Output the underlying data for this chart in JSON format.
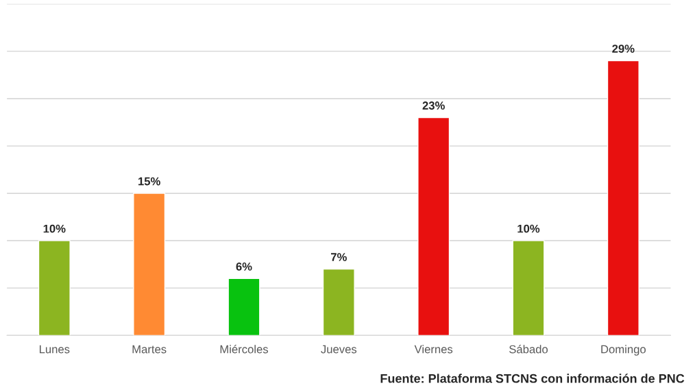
{
  "chart_data": {
    "type": "bar",
    "categories": [
      "Lunes",
      "Martes",
      "Miércoles",
      "Jueves",
      "Viernes",
      "Sábado",
      "Domingo"
    ],
    "values": [
      10,
      15,
      6,
      7,
      23,
      10,
      29
    ],
    "colors": [
      "#8cb521",
      "#ff8a33",
      "#08c20f",
      "#8cb521",
      "#e8100f",
      "#8cb521",
      "#e8100f"
    ],
    "value_labels": [
      "10%",
      "15%",
      "6%",
      "7%",
      "23%",
      "10%",
      "29%"
    ],
    "ylim": [
      0,
      35
    ],
    "yticks": [
      {
        "value": 0,
        "label": null
      },
      {
        "value": 5,
        "label": null
      },
      {
        "value": 10,
        "label": null
      },
      {
        "value": 15,
        "label": null
      },
      {
        "value": 20,
        "label": null
      },
      {
        "value": 25,
        "label": null
      },
      {
        "value": 30,
        "label": null
      },
      {
        "value": 35,
        "label": null
      }
    ],
    "grid": "y",
    "tick_labels": "x",
    "annotations": [
      "Fuente: Plataforma STCNS con información de PNC"
    ]
  }
}
